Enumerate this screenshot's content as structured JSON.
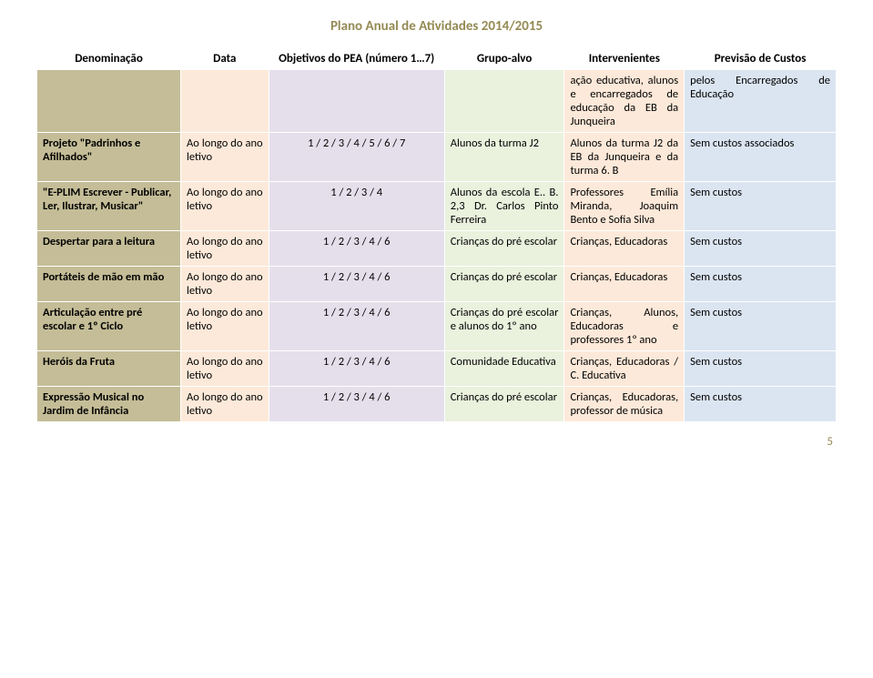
{
  "doc_title": "Plano Anual de Atividades 2014/2015",
  "page_number": "5",
  "columns": {
    "c0": "Denominação",
    "c1": "Data",
    "c2": "Objetivos do PEA (número 1…7)",
    "c3": "Grupo-alvo",
    "c4": "Intervenientes",
    "c5": "Previsão de Custos"
  },
  "col_widths": [
    "18%",
    "11%",
    "22%",
    "15%",
    "15%",
    "19%"
  ],
  "rows": [
    {
      "c0": "",
      "c1": "",
      "c2": "",
      "c3": "",
      "c4": "ação educativa, alunos e encarregados de educação da EB da Junqueira",
      "c5": "pelos Encarregados de Educação"
    },
    {
      "c0": "Projeto \"Padrinhos e Afilhados\"",
      "c1": "Ao longo do ano letivo",
      "c2": "1 / 2 / 3 / 4 / 5 / 6 / 7",
      "c3": "Alunos da turma J2",
      "c4": "Alunos da turma J2 da EB da Junqueira e da turma 6. B",
      "c5": "Sem custos associados"
    },
    {
      "c0": "\"E-PLIM Escrever - Publicar, Ler, Ilustrar, Musicar\"",
      "c1": "Ao longo do ano letivo",
      "c2": "1 / 2 / 3 / 4",
      "c3": "Alunos da escola E.. B. 2,3 Dr. Carlos Pinto Ferreira",
      "c4": "Professores Emília Miranda, Joaquim Bento e Sofia Silva",
      "c5": "Sem custos"
    },
    {
      "c0": "Despertar para a leitura",
      "c1": "Ao longo do ano letivo",
      "c2": "1 / 2 / 3 / 4 / 6",
      "c3": "Crianças do pré escolar",
      "c4": "Crianças, Educadoras",
      "c5": "Sem custos"
    },
    {
      "c0": "Portáteis de mão em mão",
      "c1": "Ao longo do ano letivo",
      "c2": "1 / 2 / 3 / 4 / 6",
      "c3": "Crianças do pré escolar",
      "c4": "Crianças, Educadoras",
      "c5": "Sem custos"
    },
    {
      "c0": "Articulação entre pré escolar e 1º Ciclo",
      "c1": "Ao longo do ano letivo",
      "c2": "1 / 2 / 3 / 4 / 6",
      "c3": "Crianças do pré escolar e alunos do 1º ano",
      "c4": "Crianças, Alunos, Educadoras e professores 1º ano",
      "c5": "Sem custos"
    },
    {
      "c0": "Heróis da Fruta",
      "c1": "Ao longo do ano letivo",
      "c2": "1 / 2 / 3 / 4 / 6",
      "c3": "Comunidade Educativa",
      "c4": "Crianças, Educadoras / C. Educativa",
      "c5": "Sem custos"
    },
    {
      "c0": "Expressão Musical no Jardim de Infância",
      "c1": "Ao longo do ano letivo",
      "c2": "1 / 2 / 3 / 4 / 6",
      "c3": "Crianças do pré escolar",
      "c4": "Crianças, Educadoras, professor de música",
      "c5": "Sem custos"
    }
  ]
}
